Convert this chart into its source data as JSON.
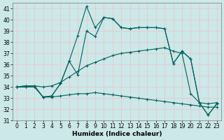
{
  "xlabel": "Humidex (Indice chaleur)",
  "xlim": [
    -0.5,
    23.5
  ],
  "ylim": [
    31,
    41.5
  ],
  "yticks": [
    31,
    32,
    33,
    34,
    35,
    36,
    37,
    38,
    39,
    40,
    41
  ],
  "xticks": [
    0,
    1,
    2,
    3,
    4,
    5,
    6,
    7,
    8,
    9,
    10,
    11,
    12,
    13,
    14,
    15,
    16,
    17,
    18,
    19,
    20,
    21,
    22,
    23
  ],
  "background_color": "#cce8e8",
  "grid_color": "#e8c8c8",
  "line_color": "#006060",
  "series": [
    [
      34.0,
      34.1,
      34.1,
      33.1,
      33.2,
      34.3,
      36.3,
      38.6,
      41.2,
      39.3,
      40.2,
      40.1,
      39.3,
      39.2,
      39.3,
      39.3,
      39.3,
      39.2,
      36.1,
      37.2,
      36.5,
      32.6,
      31.5,
      32.5
    ],
    [
      34.0,
      34.1,
      34.1,
      33.1,
      33.2,
      34.3,
      36.3,
      35.1,
      39.0,
      38.5,
      40.2,
      40.1,
      39.3,
      39.2,
      39.3,
      39.3,
      39.3,
      39.2,
      36.1,
      37.2,
      36.5,
      32.6,
      31.5,
      32.5
    ],
    [
      34.0,
      34.0,
      34.1,
      34.0,
      34.1,
      34.4,
      34.9,
      35.4,
      35.9,
      36.2,
      36.5,
      36.8,
      37.0,
      37.1,
      37.2,
      37.3,
      37.4,
      37.5,
      37.2,
      37.0,
      33.4,
      32.6,
      32.5,
      32.6
    ],
    [
      34.0,
      34.0,
      34.0,
      33.1,
      33.1,
      33.2,
      33.3,
      33.4,
      33.4,
      33.5,
      33.4,
      33.3,
      33.2,
      33.1,
      33.0,
      32.9,
      32.8,
      32.7,
      32.6,
      32.5,
      32.4,
      32.3,
      32.2,
      32.2
    ]
  ],
  "marker": "+",
  "markersize": 3.5,
  "linewidth": 0.8,
  "markeredgewidth": 0.8,
  "tick_fontsize": 5.5,
  "xlabel_fontsize": 6.5
}
